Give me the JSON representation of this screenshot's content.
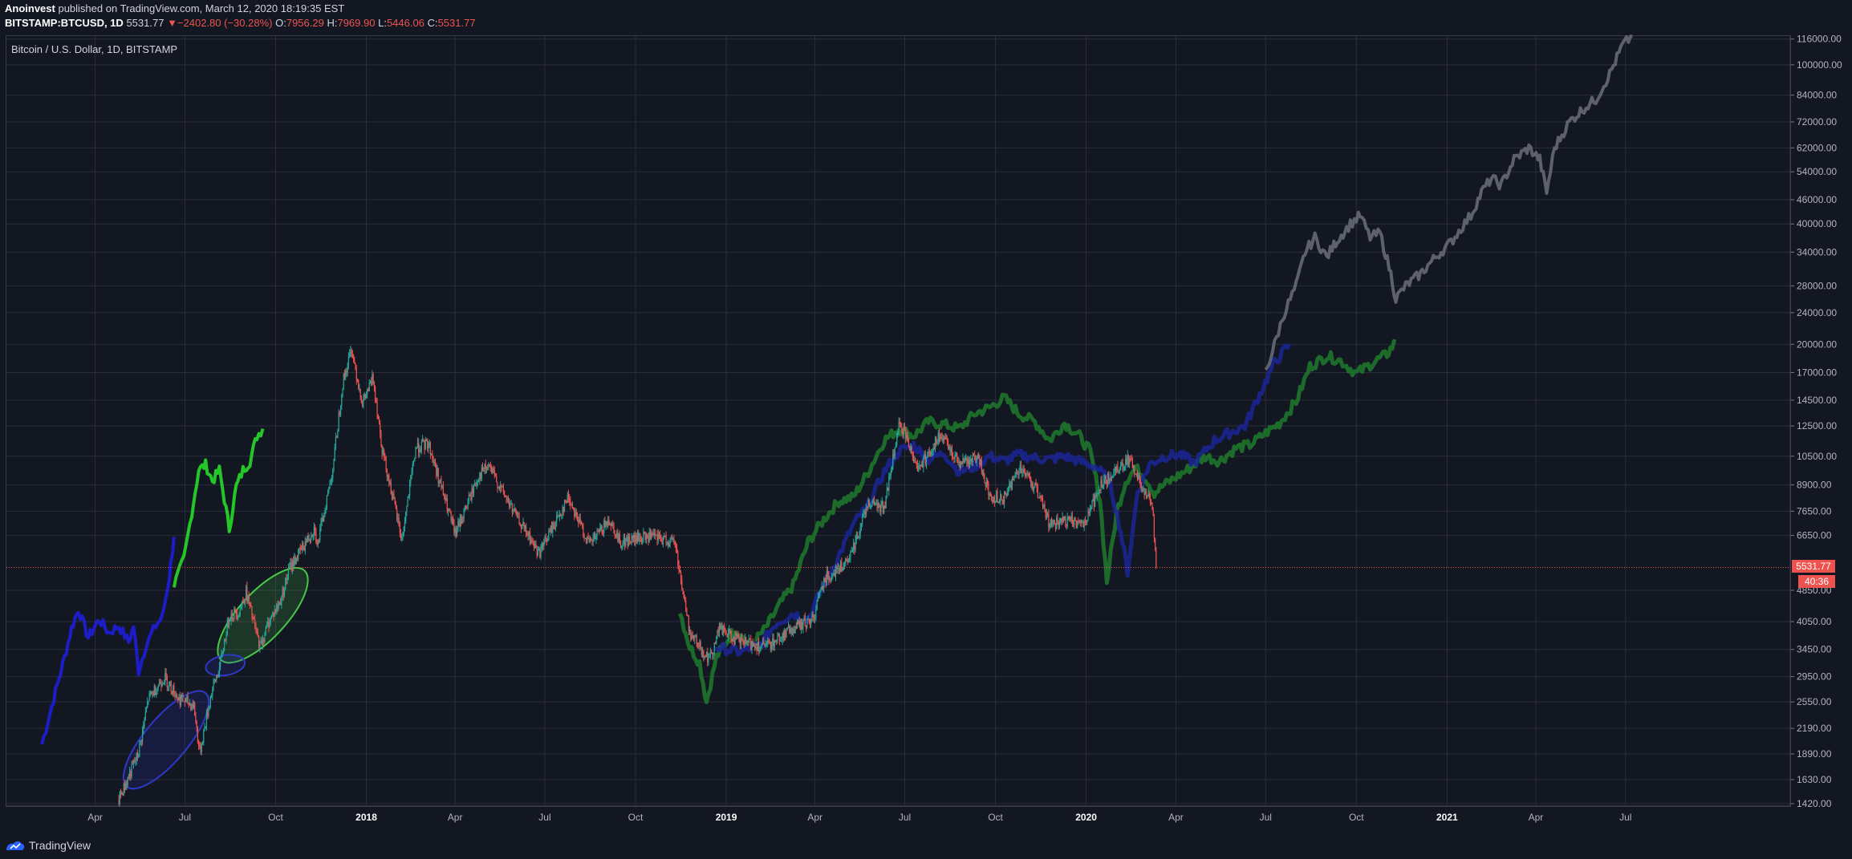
{
  "header": {
    "author": "Anoinvest",
    "published_text": "published on TradingView.com, March 12, 2020 18:19:35 EST",
    "symbol": "BITSTAMP:BTCUSD, 1D",
    "last": "5531.77",
    "change_arrow": "▼",
    "change": "−2402.80 (−30.28%)",
    "o_label": "O:",
    "o_value": "7956.29",
    "h_label": "H:",
    "h_value": "7969.90",
    "l_label": "L:",
    "l_value": "5446.06",
    "c_label": "C:",
    "c_value": "5531.77"
  },
  "pane": {
    "title": "Bitcoin / U.S. Dollar, 1D, BITSTAMP"
  },
  "price_marker": {
    "value": "5531.77",
    "countdown": "40:36"
  },
  "footer": {
    "brand": "TradingView"
  },
  "colors": {
    "background": "#131722",
    "grid": "#2a2e39",
    "up": "#26a69a",
    "down": "#ef5350",
    "fractal_blue": "#1e1ee6",
    "fractal_green": "#28e628",
    "fractal_darkgreen": "#1f7a2c",
    "fractal_navy": "#1b2496",
    "projection_grey": "#6b6e78",
    "ellipse_blue": "#2d38c8",
    "ellipse_green": "#46c846"
  },
  "chart_data": {
    "type": "line",
    "scale": "log",
    "y_ticks": [
      "116000.00",
      "100000.00",
      "84000.00",
      "72000.00",
      "62000.00",
      "54000.00",
      "46000.00",
      "40000.00",
      "34000.00",
      "28000.00",
      "24000.00",
      "20000.00",
      "17000.00",
      "14500.00",
      "12500.00",
      "10500.00",
      "8900.00",
      "7650.00",
      "6650.00",
      "4850.00",
      "4050.00",
      "3450.00",
      "2950.00",
      "2550.00",
      "2190.00",
      "1890.00",
      "1630.00",
      "1420.00"
    ],
    "x_ticks": [
      {
        "label": "Apr",
        "date": "2017-04-01"
      },
      {
        "label": "Jul",
        "date": "2017-07-01"
      },
      {
        "label": "Oct",
        "date": "2017-10-01"
      },
      {
        "label": "2018",
        "date": "2018-01-01",
        "major": true
      },
      {
        "label": "Apr",
        "date": "2018-04-01"
      },
      {
        "label": "Jul",
        "date": "2018-07-01"
      },
      {
        "label": "Oct",
        "date": "2018-10-01"
      },
      {
        "label": "2019",
        "date": "2019-01-01",
        "major": true
      },
      {
        "label": "Apr",
        "date": "2019-04-01"
      },
      {
        "label": "Jul",
        "date": "2019-07-01"
      },
      {
        "label": "Oct",
        "date": "2019-10-01"
      },
      {
        "label": "2020",
        "date": "2020-01-01",
        "major": true
      },
      {
        "label": "Apr",
        "date": "2020-04-01"
      },
      {
        "label": "Jul",
        "date": "2020-07-01"
      },
      {
        "label": "Oct",
        "date": "2020-10-01"
      },
      {
        "label": "2021",
        "date": "2021-01-01",
        "major": true
      },
      {
        "label": "Apr",
        "date": "2021-04-01"
      },
      {
        "label": "Jul",
        "date": "2021-07-01"
      }
    ],
    "x_range": [
      "2017-01-01",
      "2021-12-15"
    ],
    "y_range": [
      1400,
      118000
    ],
    "series": [
      {
        "color": "fractal_blue",
        "width": 4,
        "points": [
          [
            "2017-02-06",
            2000
          ],
          [
            "2017-02-18",
            2600
          ],
          [
            "2017-03-01",
            3300
          ],
          [
            "2017-03-08",
            3900
          ],
          [
            "2017-03-15",
            4350
          ],
          [
            "2017-03-25",
            3700
          ],
          [
            "2017-04-05",
            4100
          ],
          [
            "2017-04-15",
            3800
          ],
          [
            "2017-04-25",
            3950
          ],
          [
            "2017-05-05",
            3600
          ],
          [
            "2017-05-10",
            3950
          ],
          [
            "2017-05-15",
            3050
          ],
          [
            "2017-05-22",
            3500
          ],
          [
            "2017-06-01",
            3950
          ],
          [
            "2017-06-08",
            4150
          ],
          [
            "2017-06-15",
            5200
          ],
          [
            "2017-06-20",
            6600
          ]
        ]
      },
      {
        "color": "fractal_green",
        "width": 4,
        "points": [
          [
            "2017-06-20",
            5000
          ],
          [
            "2017-06-30",
            5800
          ],
          [
            "2017-07-08",
            7600
          ],
          [
            "2017-07-15",
            9700
          ],
          [
            "2017-07-22",
            10000
          ],
          [
            "2017-07-29",
            9100
          ],
          [
            "2017-08-05",
            9700
          ],
          [
            "2017-08-10",
            8200
          ],
          [
            "2017-08-15",
            6900
          ],
          [
            "2017-08-22",
            8800
          ],
          [
            "2017-08-29",
            9700
          ],
          [
            "2017-09-05",
            10200
          ],
          [
            "2017-09-12",
            11800
          ],
          [
            "2017-09-18",
            12300
          ]
        ]
      },
      {
        "color": "fractal_darkgreen",
        "width": 5,
        "points": [
          [
            "2018-11-15",
            4300
          ],
          [
            "2018-11-25",
            3500
          ],
          [
            "2018-12-05",
            3200
          ],
          [
            "2018-12-12",
            2550
          ],
          [
            "2018-12-22",
            3300
          ],
          [
            "2019-01-10",
            3900
          ],
          [
            "2019-01-25",
            3500
          ],
          [
            "2019-02-10",
            3900
          ],
          [
            "2019-02-25",
            4500
          ],
          [
            "2019-03-10",
            5000
          ],
          [
            "2019-03-25",
            6400
          ],
          [
            "2019-04-10",
            7300
          ],
          [
            "2019-04-25",
            8100
          ],
          [
            "2019-05-10",
            8300
          ],
          [
            "2019-05-25",
            9600
          ],
          [
            "2019-06-10",
            11500
          ],
          [
            "2019-06-25",
            12300
          ],
          [
            "2019-07-10",
            11800
          ],
          [
            "2019-07-25",
            12800
          ],
          [
            "2019-08-10",
            12600
          ],
          [
            "2019-08-25",
            12300
          ],
          [
            "2019-09-10",
            13400
          ],
          [
            "2019-09-25",
            13900
          ],
          [
            "2019-10-10",
            14700
          ],
          [
            "2019-10-25",
            13400
          ],
          [
            "2019-11-10",
            12800
          ],
          [
            "2019-11-25",
            11500
          ],
          [
            "2019-12-10",
            12700
          ],
          [
            "2019-12-25",
            11800
          ],
          [
            "2020-01-05",
            10800
          ],
          [
            "2020-01-15",
            8200
          ],
          [
            "2020-01-22",
            5100
          ],
          [
            "2020-02-01",
            7600
          ],
          [
            "2020-02-10",
            9100
          ],
          [
            "2020-02-20",
            9800
          ],
          [
            "2020-03-01",
            9300
          ],
          [
            "2020-03-10",
            8500
          ],
          [
            "2020-03-20",
            8900
          ],
          [
            "2020-04-01",
            9300
          ],
          [
            "2020-04-15",
            9800
          ],
          [
            "2020-05-01",
            10500
          ],
          [
            "2020-05-15",
            10200
          ],
          [
            "2020-06-01",
            11000
          ],
          [
            "2020-06-15",
            11200
          ],
          [
            "2020-07-01",
            12000
          ],
          [
            "2020-07-15",
            12700
          ],
          [
            "2020-08-01",
            14400
          ],
          [
            "2020-08-15",
            17600
          ],
          [
            "2020-09-01",
            18700
          ],
          [
            "2020-09-15",
            18200
          ],
          [
            "2020-10-01",
            16900
          ],
          [
            "2020-10-15",
            17800
          ],
          [
            "2020-11-01",
            18900
          ],
          [
            "2020-11-10",
            20300
          ]
        ]
      },
      {
        "color": "fractal_navy",
        "width": 5,
        "points": [
          [
            "2018-12-20",
            3500
          ],
          [
            "2019-01-15",
            3400
          ],
          [
            "2019-02-05",
            3550
          ],
          [
            "2019-02-20",
            4000
          ],
          [
            "2019-03-10",
            4250
          ],
          [
            "2019-03-25",
            4100
          ],
          [
            "2019-04-10",
            5000
          ],
          [
            "2019-04-25",
            5900
          ],
          [
            "2019-05-10",
            7100
          ],
          [
            "2019-05-25",
            7900
          ],
          [
            "2019-06-10",
            9600
          ],
          [
            "2019-06-25",
            10800
          ],
          [
            "2019-07-10",
            11200
          ],
          [
            "2019-07-25",
            10300
          ],
          [
            "2019-08-10",
            10700
          ],
          [
            "2019-08-25",
            9600
          ],
          [
            "2019-09-10",
            9900
          ],
          [
            "2019-09-25",
            10500
          ],
          [
            "2019-10-10",
            10200
          ],
          [
            "2019-10-25",
            10600
          ],
          [
            "2019-11-10",
            10400
          ],
          [
            "2019-11-25",
            10300
          ],
          [
            "2019-12-10",
            10500
          ],
          [
            "2019-12-25",
            10200
          ],
          [
            "2020-01-10",
            9900
          ],
          [
            "2020-01-25",
            9100
          ],
          [
            "2020-02-05",
            6800
          ],
          [
            "2020-02-12",
            5400
          ],
          [
            "2020-02-22",
            8500
          ],
          [
            "2020-03-05",
            10000
          ],
          [
            "2020-03-20",
            10500
          ],
          [
            "2020-04-05",
            10600
          ],
          [
            "2020-04-20",
            10100
          ],
          [
            "2020-05-10",
            11500
          ],
          [
            "2020-05-25",
            12000
          ],
          [
            "2020-06-10",
            12500
          ],
          [
            "2020-06-25",
            15000
          ],
          [
            "2020-07-10",
            18000
          ],
          [
            "2020-07-25",
            20000
          ]
        ]
      },
      {
        "color": "projection_grey",
        "width": 4,
        "points": [
          [
            "2020-07-01",
            17000
          ],
          [
            "2020-07-10",
            20000
          ],
          [
            "2020-07-20",
            24000
          ],
          [
            "2020-08-01",
            28000
          ],
          [
            "2020-08-10",
            34000
          ],
          [
            "2020-08-20",
            37000
          ],
          [
            "2020-09-01",
            33000
          ],
          [
            "2020-09-10",
            36000
          ],
          [
            "2020-09-25",
            40000
          ],
          [
            "2020-10-05",
            42000
          ],
          [
            "2020-10-15",
            37000
          ],
          [
            "2020-10-25",
            38000
          ],
          [
            "2020-11-05",
            30000
          ],
          [
            "2020-11-10",
            26000
          ],
          [
            "2020-11-20",
            28000
          ],
          [
            "2020-12-05",
            30000
          ],
          [
            "2020-12-20",
            33000
          ],
          [
            "2021-01-05",
            36000
          ],
          [
            "2021-01-15",
            39000
          ],
          [
            "2021-01-25",
            42000
          ],
          [
            "2021-02-05",
            48000
          ],
          [
            "2021-02-15",
            52000
          ],
          [
            "2021-02-25",
            50000
          ],
          [
            "2021-03-10",
            58000
          ],
          [
            "2021-03-25",
            62000
          ],
          [
            "2021-04-05",
            58000
          ],
          [
            "2021-04-12",
            48000
          ],
          [
            "2021-04-20",
            62000
          ],
          [
            "2021-05-05",
            72000
          ],
          [
            "2021-05-20",
            78000
          ],
          [
            "2021-06-01",
            82000
          ],
          [
            "2021-06-15",
            95000
          ],
          [
            "2021-06-28",
            112000
          ],
          [
            "2021-07-08",
            118000
          ]
        ]
      }
    ],
    "price_candles": {
      "anchors": [
        [
          "2017-04-25",
          1450
        ],
        [
          "2017-05-15",
          1900
        ],
        [
          "2017-05-25",
          2600
        ],
        [
          "2017-06-10",
          2950
        ],
        [
          "2017-06-25",
          2600
        ],
        [
          "2017-07-10",
          2500
        ],
        [
          "2017-07-16",
          1900
        ],
        [
          "2017-07-28",
          2700
        ],
        [
          "2017-08-05",
          3100
        ],
        [
          "2017-08-15",
          4200
        ],
        [
          "2017-08-25",
          4300
        ],
        [
          "2017-09-01",
          4800
        ],
        [
          "2017-09-15",
          3500
        ],
        [
          "2017-09-25",
          4100
        ],
        [
          "2017-10-05",
          4500
        ],
        [
          "2017-10-15",
          5500
        ],
        [
          "2017-10-30",
          6300
        ],
        [
          "2017-11-10",
          7000
        ],
        [
          "2017-11-12",
          6200
        ],
        [
          "2017-11-28",
          9800
        ],
        [
          "2017-12-08",
          16000
        ],
        [
          "2017-12-17",
          19500
        ],
        [
          "2017-12-28",
          14200
        ],
        [
          "2018-01-08",
          16500
        ],
        [
          "2018-01-17",
          11000
        ],
        [
          "2018-02-06",
          6500
        ],
        [
          "2018-02-20",
          11000
        ],
        [
          "2018-03-05",
          11300
        ],
        [
          "2018-04-01",
          6700
        ],
        [
          "2018-04-25",
          9400
        ],
        [
          "2018-05-05",
          9900
        ],
        [
          "2018-06-01",
          7500
        ],
        [
          "2018-06-25",
          6000
        ],
        [
          "2018-07-25",
          8300
        ],
        [
          "2018-08-15",
          6300
        ],
        [
          "2018-09-05",
          7300
        ],
        [
          "2018-09-15",
          6400
        ],
        [
          "2018-10-15",
          6600
        ],
        [
          "2018-11-10",
          6400
        ],
        [
          "2018-11-20",
          4500
        ],
        [
          "2018-11-25",
          3800
        ],
        [
          "2018-12-15",
          3250
        ],
        [
          "2018-12-25",
          3900
        ],
        [
          "2019-01-15",
          3600
        ],
        [
          "2019-02-10",
          3500
        ],
        [
          "2019-03-10",
          3900
        ],
        [
          "2019-03-30",
          4100
        ],
        [
          "2019-04-10",
          5200
        ],
        [
          "2019-05-05",
          5700
        ],
        [
          "2019-05-25",
          8100
        ],
        [
          "2019-06-10",
          7800
        ],
        [
          "2019-06-26",
          12800
        ],
        [
          "2019-07-15",
          9800
        ],
        [
          "2019-08-06",
          11800
        ],
        [
          "2019-08-25",
          10200
        ],
        [
          "2019-09-15",
          10300
        ],
        [
          "2019-09-25",
          8300
        ],
        [
          "2019-10-10",
          8300
        ],
        [
          "2019-10-26",
          9900
        ],
        [
          "2019-11-10",
          8800
        ],
        [
          "2019-11-25",
          7100
        ],
        [
          "2019-12-15",
          7200
        ],
        [
          "2019-12-31",
          7200
        ],
        [
          "2020-01-15",
          8800
        ],
        [
          "2020-02-12",
          10400
        ],
        [
          "2020-02-28",
          8700
        ],
        [
          "2020-03-08",
          7950
        ],
        [
          "2020-03-12",
          5532
        ]
      ],
      "start": "2017-04-25",
      "end": "2020-03-12"
    },
    "horizontal_line": {
      "value": 5531.77,
      "color": "#ef5350"
    },
    "ellipses": [
      {
        "color": "ellipse_blue",
        "center": [
          "2017-06-12",
          2050
        ],
        "rx_days": 62,
        "ry_ratio": 1.75,
        "angle": -50
      },
      {
        "color": "ellipse_green",
        "center": [
          "2017-09-18",
          4200
        ],
        "rx_days": 62,
        "ry_ratio": 1.62,
        "angle": -47
      },
      {
        "color": "ellipse_blue",
        "center": [
          "2017-08-11",
          3150
        ],
        "rx_days": 20,
        "ry_ratio": 1.22,
        "angle": -10
      }
    ]
  }
}
